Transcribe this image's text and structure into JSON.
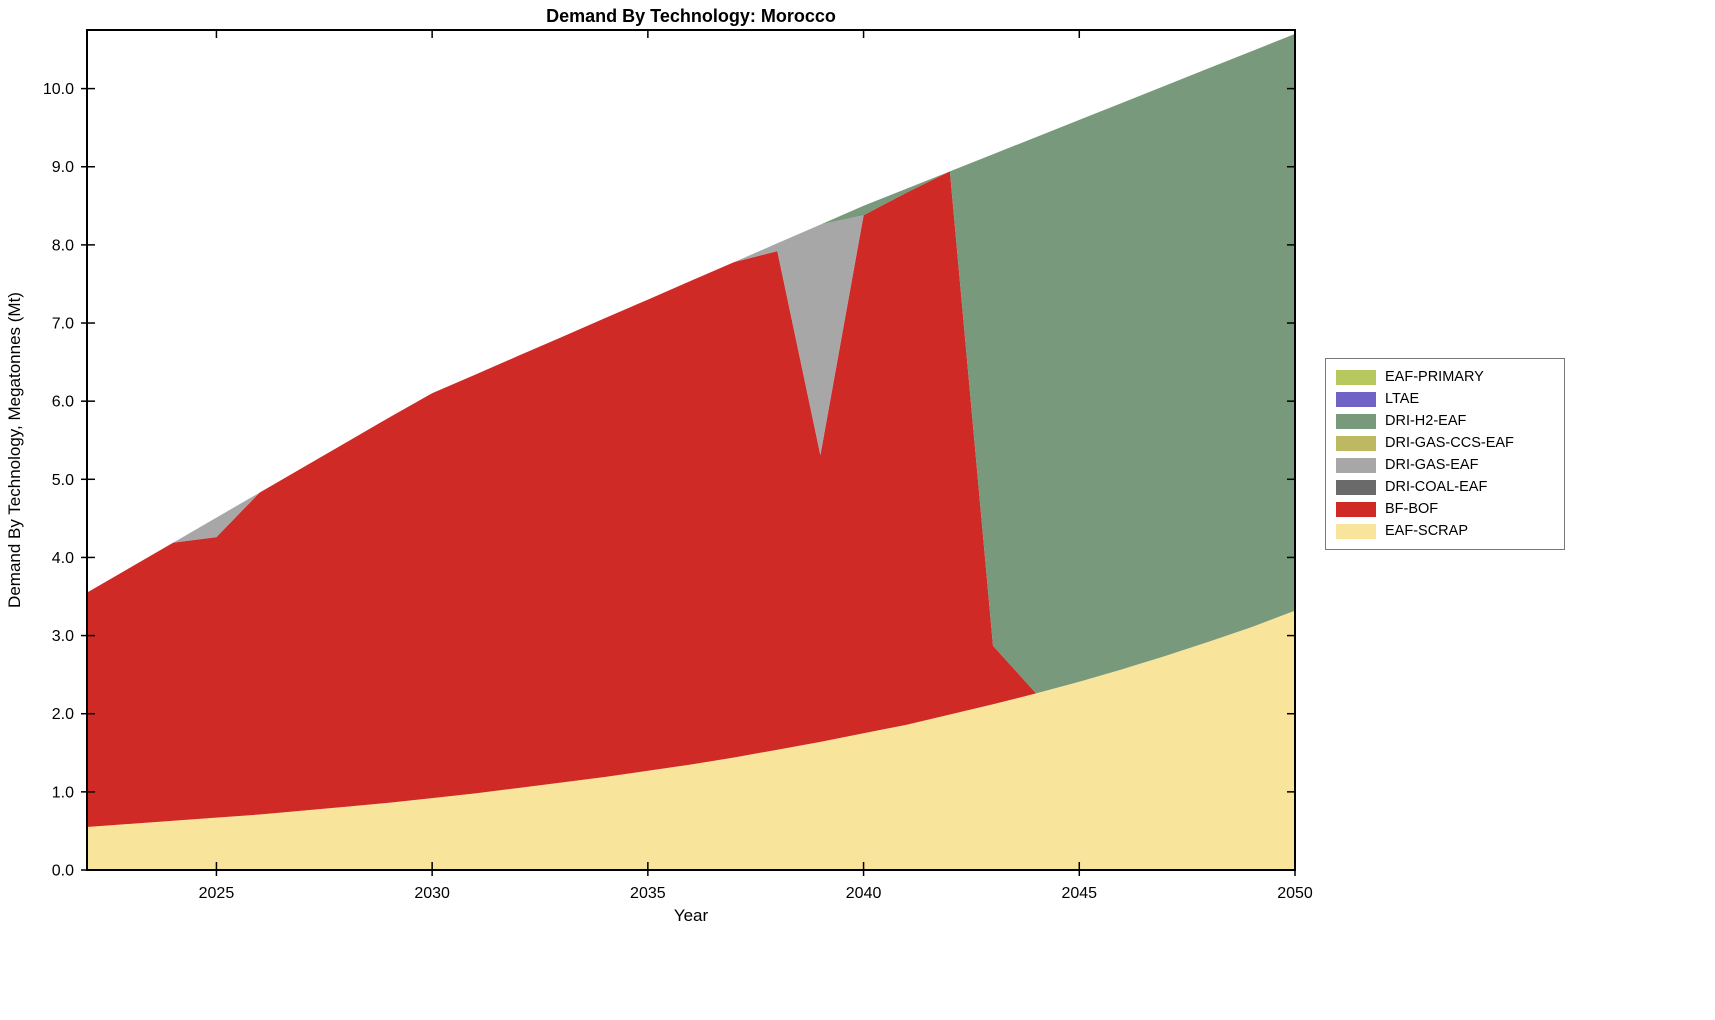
{
  "chart_data": {
    "type": "area",
    "stacked": true,
    "title": "Demand By Technology: Morocco",
    "xlabel": "Year",
    "ylabel": "Demand By Technology, Megatonnes (Mt)",
    "xlim": [
      2022,
      2050
    ],
    "ylim": [
      0,
      10.75
    ],
    "xticks": [
      2025,
      2030,
      2035,
      2040,
      2045,
      2050
    ],
    "yticks": [
      0,
      1,
      2,
      3,
      4,
      5,
      6,
      7,
      8,
      9,
      10
    ],
    "grid": false,
    "legend_position": "right",
    "x": [
      2022,
      2023,
      2024,
      2025,
      2026,
      2027,
      2028,
      2029,
      2030,
      2031,
      2032,
      2033,
      2034,
      2035,
      2036,
      2037,
      2038,
      2039,
      2040,
      2041,
      2042,
      2043,
      2044,
      2045,
      2046,
      2047,
      2048,
      2049,
      2050
    ],
    "series": [
      {
        "name": "EAF-SCRAP",
        "color": "#f9e49c",
        "values": [
          0.55,
          0.59,
          0.63,
          0.67,
          0.71,
          0.76,
          0.81,
          0.86,
          0.92,
          0.98,
          1.05,
          1.12,
          1.19,
          1.27,
          1.35,
          1.44,
          1.54,
          1.64,
          1.75,
          1.86,
          1.99,
          2.12,
          2.26,
          2.41,
          2.57,
          2.74,
          2.92,
          3.11,
          3.32
        ]
      },
      {
        "name": "BF-BOF",
        "color": "#d02a27",
        "values": [
          3.0,
          3.28,
          3.56,
          3.59,
          4.12,
          4.39,
          4.66,
          4.93,
          5.18,
          5.36,
          5.53,
          5.7,
          5.87,
          6.03,
          6.19,
          6.34,
          6.38,
          3.67,
          6.63,
          6.81,
          6.95,
          0.75,
          0,
          0,
          0,
          0,
          0,
          0,
          0
        ]
      },
      {
        "name": "DRI-COAL-EAF",
        "color": "#6a6a6a",
        "values": [
          0,
          0,
          0,
          0,
          0,
          0,
          0,
          0,
          0,
          0,
          0,
          0,
          0,
          0,
          0,
          0,
          0,
          0,
          0,
          0,
          0,
          0,
          0,
          0,
          0,
          0,
          0,
          0,
          0
        ]
      },
      {
        "name": "DRI-GAS-EAF",
        "color": "#a7a7a7",
        "values": [
          0,
          0,
          0,
          0.25,
          0,
          0,
          0,
          0,
          0,
          0,
          0,
          0,
          0,
          0,
          0,
          0,
          0.1,
          2.95,
          0,
          0,
          0,
          0,
          0,
          0,
          0,
          0,
          0,
          0,
          0
        ]
      },
      {
        "name": "DRI-GAS-CCS-EAF",
        "color": "#bdb962",
        "values": [
          0,
          0,
          0,
          0,
          0,
          0,
          0,
          0,
          0,
          0,
          0,
          0,
          0,
          0,
          0,
          0,
          0,
          0,
          0,
          0,
          0,
          0,
          0,
          0,
          0,
          0,
          0,
          0,
          0
        ]
      },
      {
        "name": "DRI-H2-EAF",
        "color": "#79997c",
        "values": [
          0,
          0,
          0,
          0,
          0,
          0,
          0,
          0,
          0,
          0,
          0,
          0,
          0,
          0,
          0,
          0,
          0,
          0,
          0.12,
          0.05,
          0,
          6.29,
          7.12,
          7.19,
          7.25,
          7.3,
          7.34,
          7.37,
          7.38
        ]
      },
      {
        "name": "LTAE",
        "color": "#6f63c5",
        "values": [
          0,
          0,
          0,
          0,
          0,
          0,
          0,
          0,
          0,
          0,
          0,
          0,
          0,
          0,
          0,
          0,
          0,
          0,
          0,
          0,
          0,
          0,
          0,
          0,
          0,
          0,
          0,
          0,
          0
        ]
      },
      {
        "name": "EAF-PRIMARY",
        "color": "#b7c95e",
        "values": [
          0,
          0,
          0,
          0,
          0,
          0,
          0,
          0,
          0,
          0,
          0,
          0,
          0,
          0,
          0,
          0,
          0,
          0,
          0,
          0,
          0,
          0,
          0,
          0,
          0,
          0,
          0,
          0,
          0
        ]
      }
    ],
    "legend_order_top_to_bottom": [
      "EAF-PRIMARY",
      "LTAE",
      "DRI-H2-EAF",
      "DRI-GAS-CCS-EAF",
      "DRI-GAS-EAF",
      "DRI-COAL-EAF",
      "BF-BOF",
      "EAF-SCRAP"
    ]
  }
}
